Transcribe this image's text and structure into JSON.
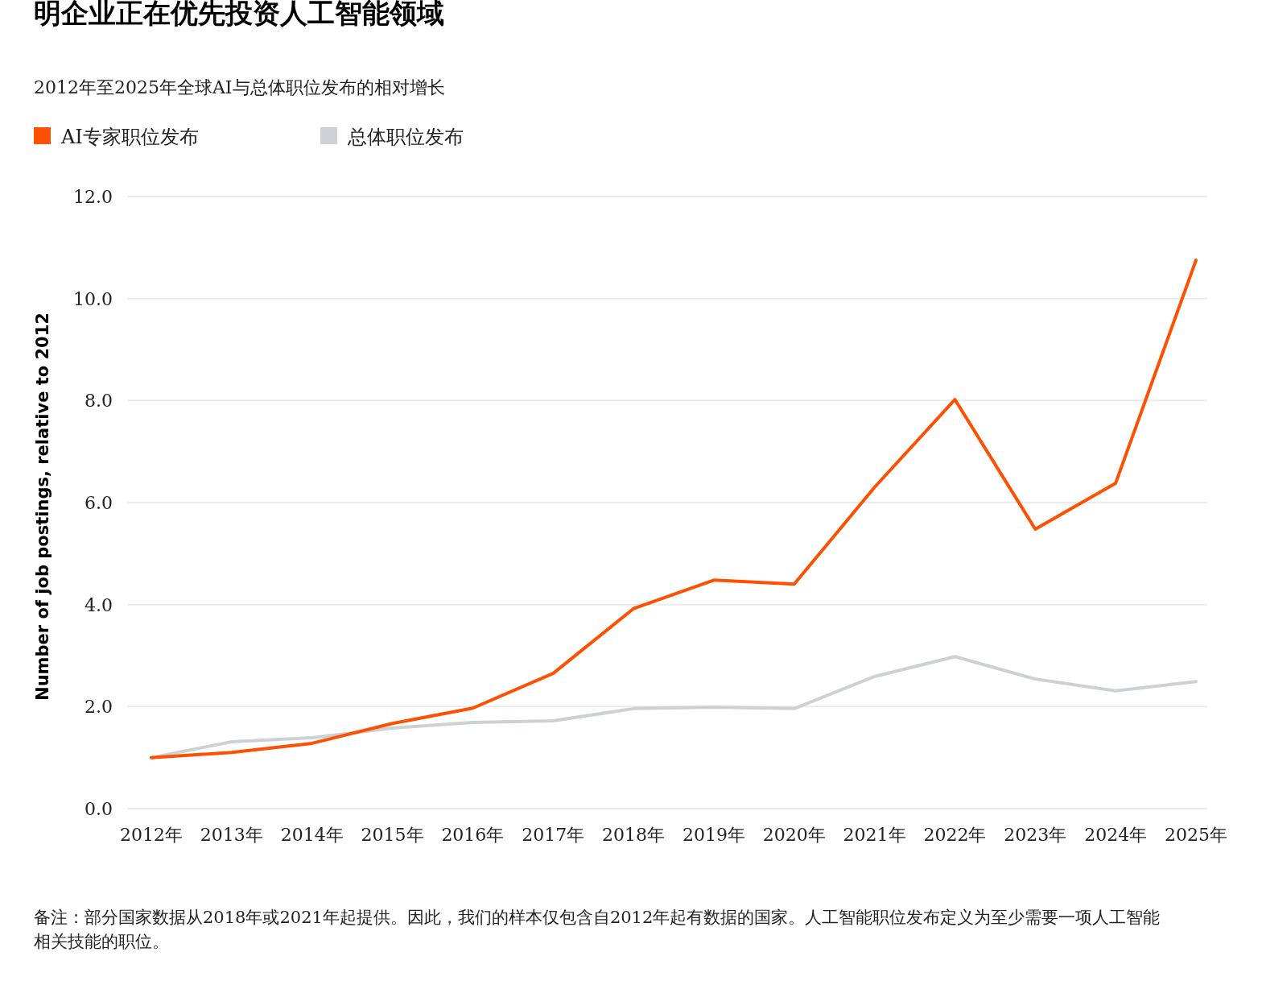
{
  "chart_data": {
    "type": "line",
    "title": "明企业正在优先投资人工智能领域",
    "subtitle": "2012年至2025年全球AI与总体职位发布的相对增长",
    "ylabel": "Number of job postings, relative to 2012",
    "categories": [
      "2012年",
      "2013年",
      "2014年",
      "2015年",
      "2016年",
      "2017年",
      "2018年",
      "2019年",
      "2020年",
      "2021年",
      "2022年",
      "2023年",
      "2024年",
      "2025年"
    ],
    "series": [
      {
        "name": "AI专家职位发布",
        "color": "#fe5000",
        "values": [
          1.0,
          1.1,
          1.28,
          1.67,
          1.97,
          2.65,
          3.92,
          4.48,
          4.4,
          6.3,
          8.02,
          5.48,
          6.38,
          10.75
        ]
      },
      {
        "name": "总体职位发布",
        "color": "#cbd1d4",
        "values": [
          1.0,
          1.31,
          1.39,
          1.58,
          1.69,
          1.72,
          1.96,
          1.99,
          1.96,
          2.59,
          2.98,
          2.54,
          2.31,
          2.49
        ]
      }
    ],
    "ylim": [
      0,
      12
    ],
    "yticks": [
      {
        "value": 0,
        "label": "0.0"
      },
      {
        "value": 2,
        "label": "2.0"
      },
      {
        "value": 4,
        "label": "4.0"
      },
      {
        "value": 6,
        "label": "6.0"
      },
      {
        "value": 8,
        "label": "8.0"
      },
      {
        "value": 10,
        "label": "10.0"
      },
      {
        "value": 12,
        "label": "12.0"
      }
    ],
    "grid": "y",
    "legend": "top left",
    "marker": "none",
    "line_style": "solid",
    "annotations": [
      "备注：部分国家数据从2018年或2021年起提供。因此，我们的样本仅包含自2012年起有数据的国家。人工智能职位发布定义为至少需要一项人工智能相关技能的职位。"
    ]
  }
}
